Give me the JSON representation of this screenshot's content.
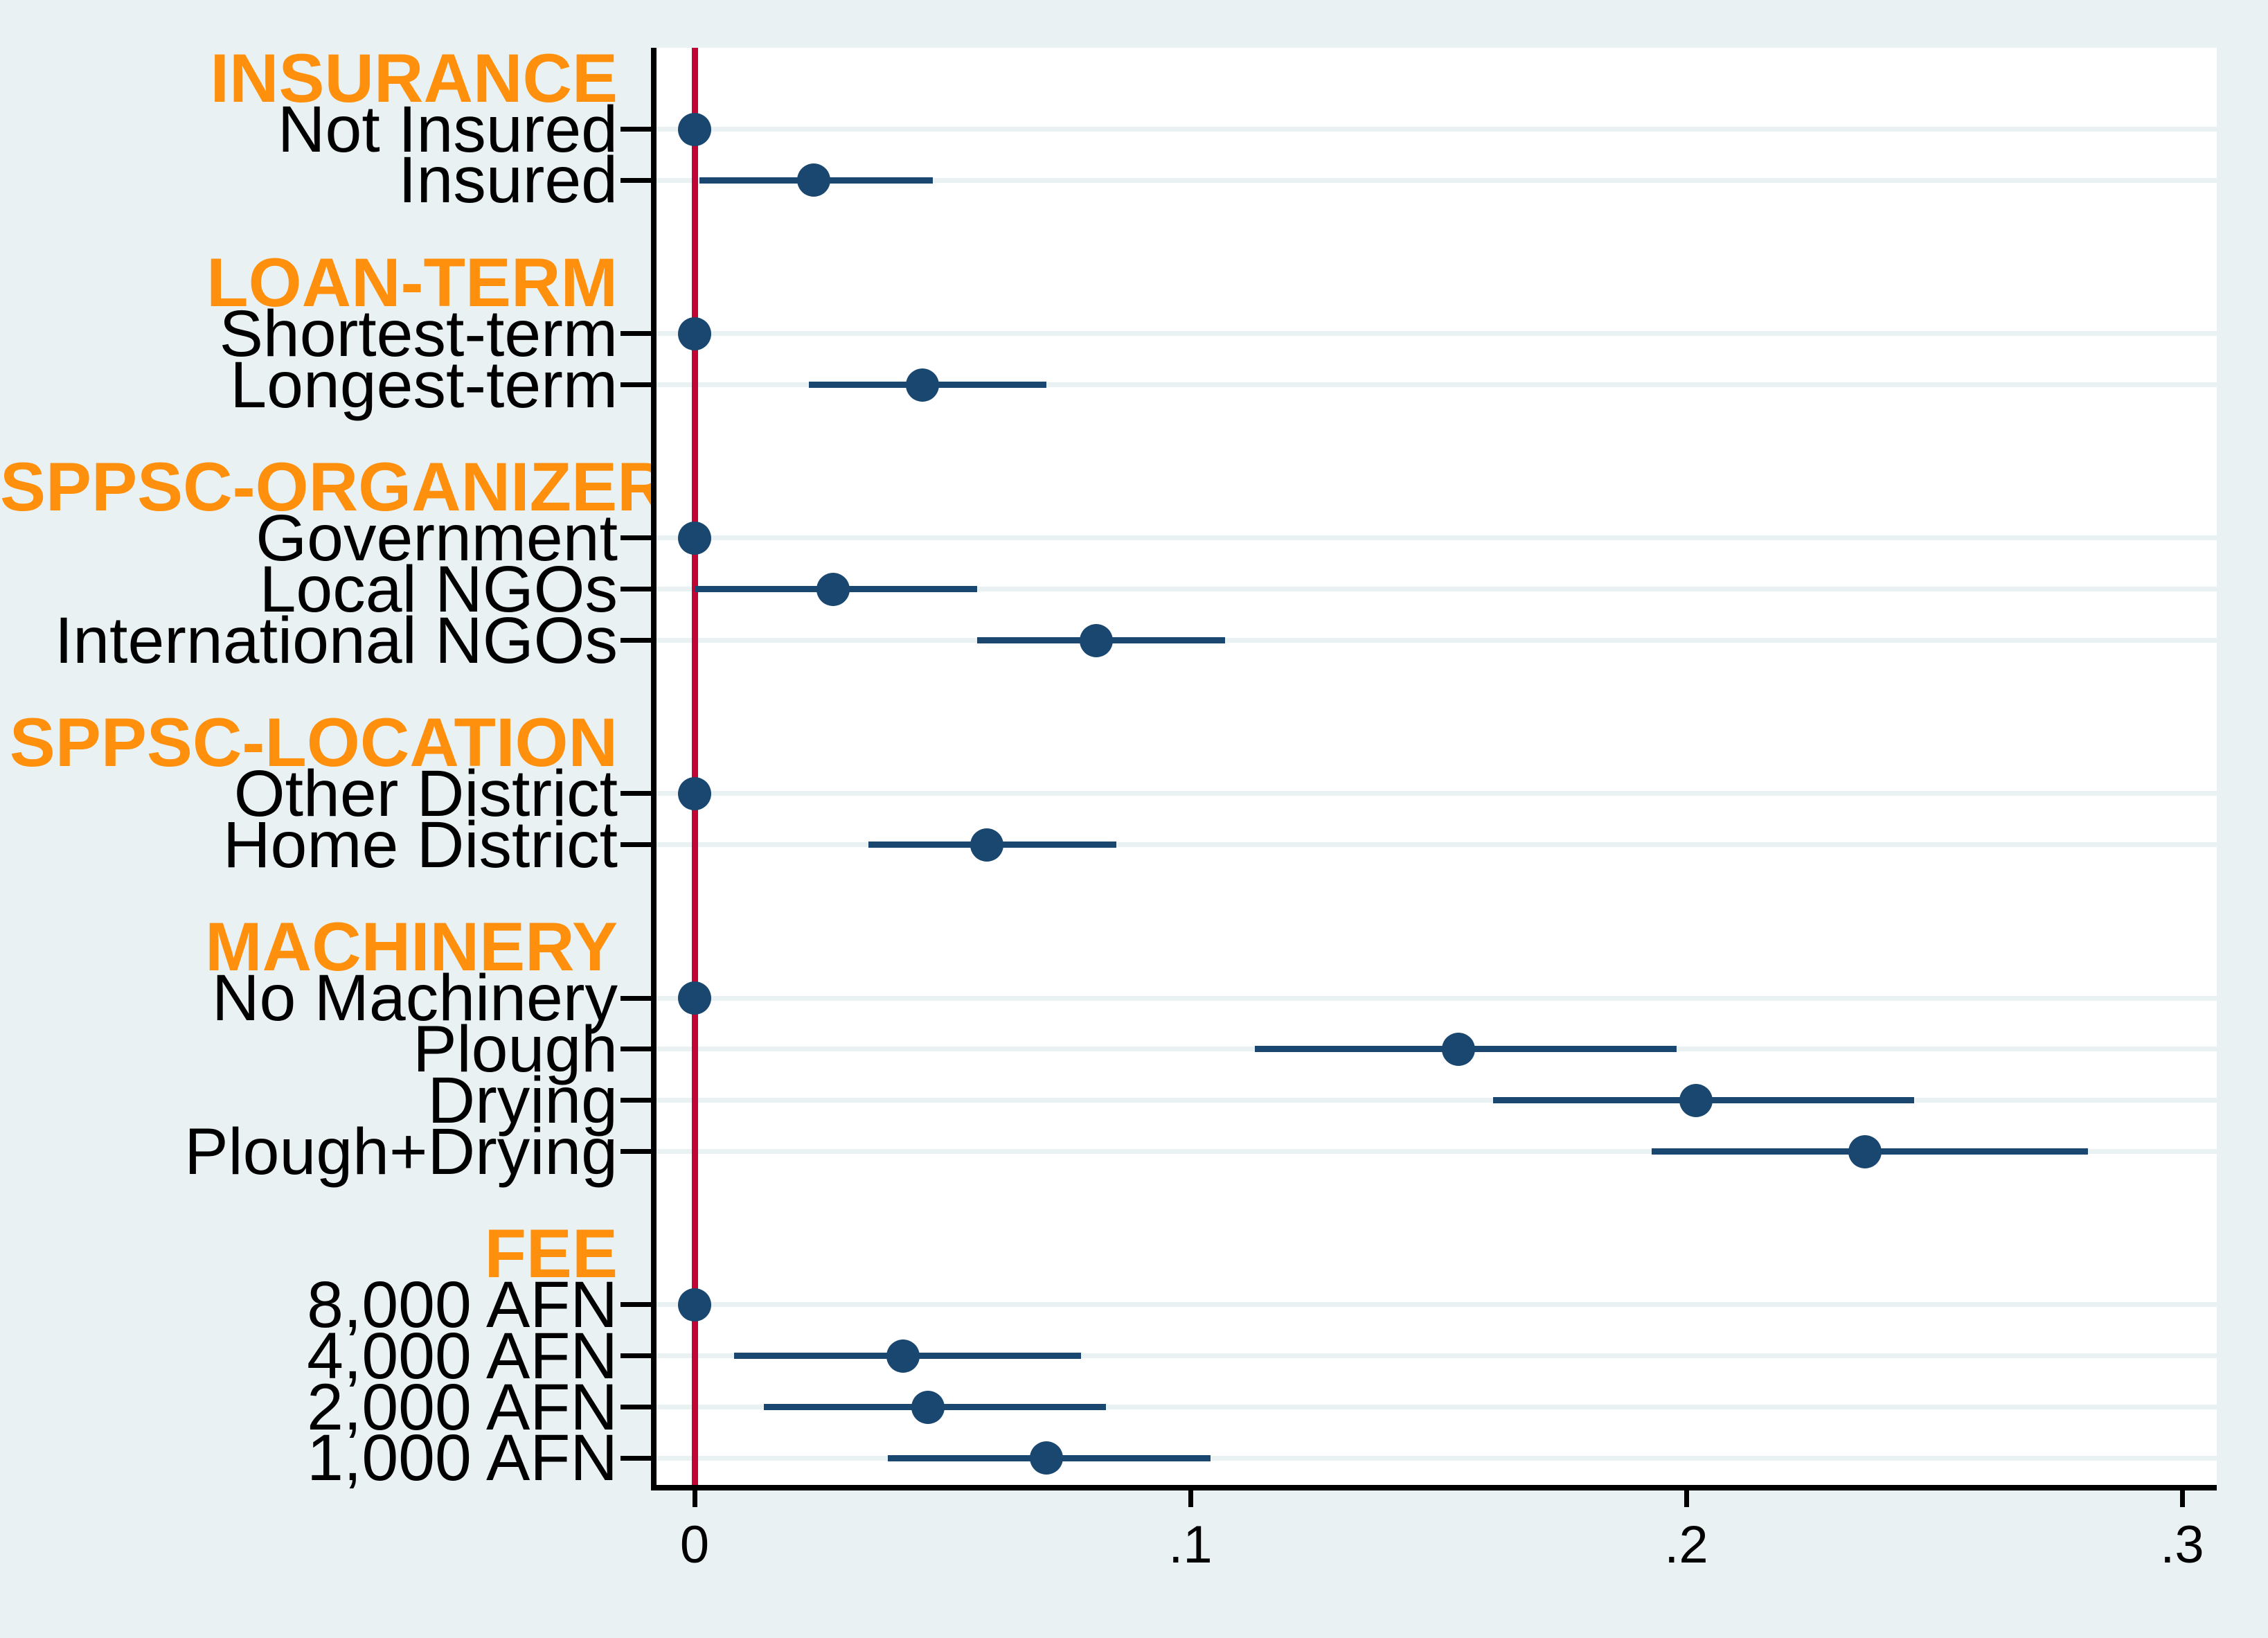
{
  "chart_data": {
    "type": "scatter",
    "subtype": "coefficient-dot-and-whisker",
    "orientation": "horizontal",
    "groups": [
      {
        "header": "INSURANCE",
        "items": [
          {
            "label": "Not Insured",
            "estimate": 0,
            "reference": true
          },
          {
            "label": "Insured",
            "estimate": 0.024,
            "ci_low": 0.001,
            "ci_high": 0.048
          }
        ]
      },
      {
        "header": "LOAN-TERM",
        "items": [
          {
            "label": "Shortest-term",
            "estimate": 0,
            "reference": true
          },
          {
            "label": "Longest-term",
            "estimate": 0.046,
            "ci_low": 0.023,
            "ci_high": 0.071
          }
        ]
      },
      {
        "header": "SPPSC-ORGANIZER",
        "items": [
          {
            "label": "Government",
            "estimate": 0,
            "reference": true
          },
          {
            "label": "Local NGOs",
            "estimate": 0.028,
            "ci_low": 0.0,
            "ci_high": 0.057
          },
          {
            "label": "International NGOs",
            "estimate": 0.081,
            "ci_low": 0.057,
            "ci_high": 0.107
          }
        ]
      },
      {
        "header": "SPPSC-LOCATION",
        "items": [
          {
            "label": "Other District",
            "estimate": 0,
            "reference": true
          },
          {
            "label": "Home District",
            "estimate": 0.059,
            "ci_low": 0.035,
            "ci_high": 0.085
          }
        ]
      },
      {
        "header": "MACHINERY",
        "items": [
          {
            "label": "No Machinery",
            "estimate": 0,
            "reference": true
          },
          {
            "label": "Plough",
            "estimate": 0.154,
            "ci_low": 0.113,
            "ci_high": 0.198
          },
          {
            "label": "Drying",
            "estimate": 0.202,
            "ci_low": 0.161,
            "ci_high": 0.246
          },
          {
            "label": "Plough+Drying",
            "estimate": 0.236,
            "ci_low": 0.193,
            "ci_high": 0.281
          }
        ]
      },
      {
        "header": "FEE",
        "items": [
          {
            "label": "8,000 AFN",
            "estimate": 0,
            "reference": true
          },
          {
            "label": "4,000 AFN",
            "estimate": 0.042,
            "ci_low": 0.008,
            "ci_high": 0.078
          },
          {
            "label": "2,000 AFN",
            "estimate": 0.047,
            "ci_low": 0.014,
            "ci_high": 0.083
          },
          {
            "label": "1,000 AFN",
            "estimate": 0.071,
            "ci_low": 0.039,
            "ci_high": 0.104
          }
        ]
      }
    ],
    "x_axis": {
      "tick_labels": [
        "0",
        ".1",
        ".2",
        ".3"
      ],
      "tick_values": [
        0,
        0.1,
        0.2,
        0.3
      ],
      "range": [
        -0.008,
        0.307
      ]
    },
    "zero_reference_line": 0,
    "grid": "horizontal-per-row",
    "legend": "none",
    "colors": {
      "dot": "#1a476f",
      "ci_line": "#1a476f",
      "zero_line": "#c10534",
      "group_header_text": "#ff900d",
      "item_label_text": "#000000",
      "axis_line": "#000000",
      "background": "#eaf1f2",
      "plot_background": "#ffffff",
      "gridline": "#eaf1f2"
    }
  }
}
